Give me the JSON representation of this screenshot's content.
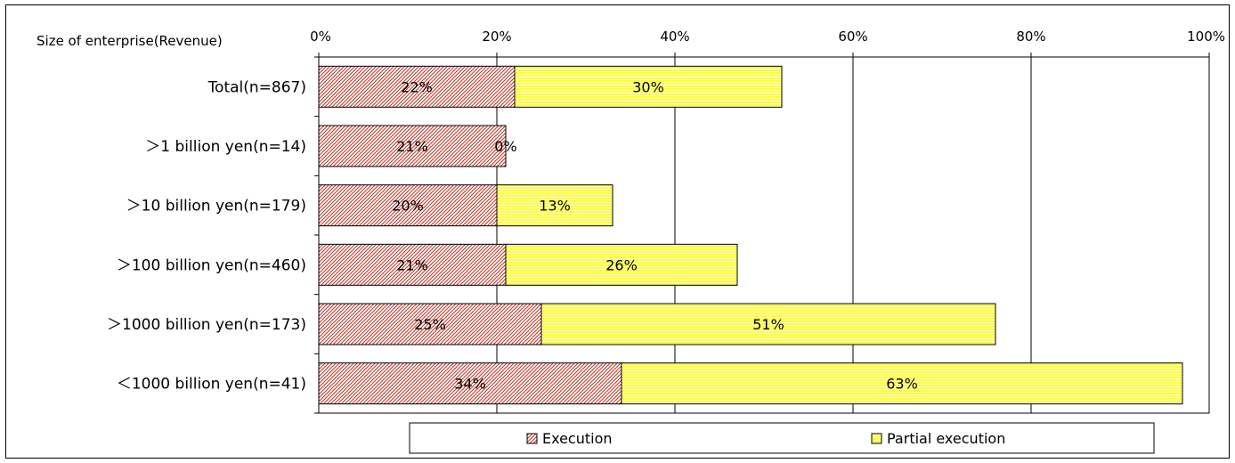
{
  "chart_data": {
    "type": "bar",
    "orientation": "horizontal",
    "stacked": true,
    "category_header": "Size of enterprise(Revenue)",
    "categories": [
      "Total(n=867)",
      "＞1 billion yen(n=14)",
      "＞10 billion yen(n=179)",
      "＞100 billion yen(n=460)",
      "＞1000 billion yen(n=173)",
      "＜1000  billion yen(n=41)"
    ],
    "series": [
      {
        "name": "Execution",
        "values": [
          22,
          21,
          20,
          21,
          25,
          34
        ],
        "labels": [
          "22%",
          "21%",
          "20%",
          "21%",
          "25%",
          "34%"
        ],
        "fill": "#ffffff",
        "pattern_color": "#c0392b",
        "pattern": "diagonal-hatch"
      },
      {
        "name": "Partial execution",
        "values": [
          30,
          0,
          13,
          26,
          51,
          63
        ],
        "labels": [
          "30%",
          "0%",
          "13%",
          "26%",
          "51%",
          "63%"
        ],
        "fill": "#ffff33",
        "pattern_color": "#ffffff",
        "pattern": "horizontal-lines"
      }
    ],
    "xaxis": {
      "ticks": [
        "0%",
        "20%",
        "40%",
        "60%",
        "80%",
        "100%"
      ],
      "range": [
        0,
        100
      ],
      "position": "top"
    },
    "grid": true,
    "legend_position": "bottom"
  }
}
